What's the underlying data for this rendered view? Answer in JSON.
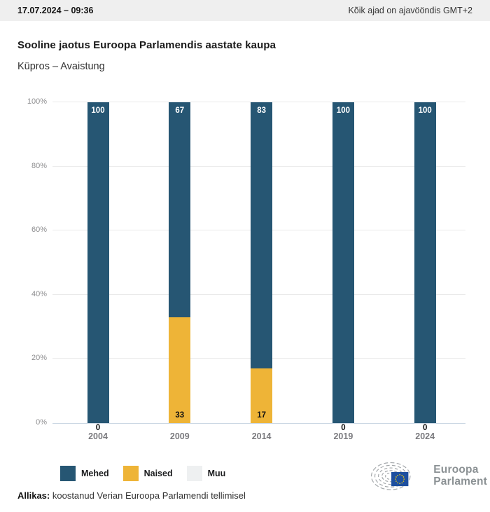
{
  "header": {
    "datetime": "17.07.2024 – 09:36",
    "timezone_note": "Kõik ajad on ajavööndis GMT+2"
  },
  "title": "Sooline jaotus Euroopa Parlamendis aastate kaupa",
  "subtitle": "Küpros – Avaistung",
  "chart_data": {
    "type": "bar",
    "stacked": true,
    "categories": [
      "2004",
      "2009",
      "2014",
      "2019",
      "2024"
    ],
    "series": [
      {
        "name": "Mehed",
        "color": "#265673",
        "values": [
          100,
          67,
          83,
          100,
          100
        ]
      },
      {
        "name": "Naised",
        "color": "#eeb437",
        "values": [
          0,
          33,
          17,
          0,
          0
        ]
      },
      {
        "name": "Muu",
        "color": "#eef0f1",
        "values": [
          0,
          0,
          0,
          0,
          0
        ]
      }
    ],
    "title": "Sooline jaotus Euroopa Parlamendis aastate kaupa",
    "xlabel": "",
    "ylabel": "",
    "ylim": [
      0,
      100
    ],
    "yticks": [
      0,
      20,
      40,
      60,
      80,
      100
    ],
    "ytick_suffix": "%",
    "grid": true,
    "legend_position": "bottom",
    "value_labels": true
  },
  "legend": {
    "items": [
      {
        "label": "Mehed",
        "color": "#265673"
      },
      {
        "label": "Naised",
        "color": "#eeb437"
      },
      {
        "label": "Muu",
        "color": "#eef0f1"
      }
    ]
  },
  "footer": {
    "source_label": "Allikas:",
    "source_text": " koostanud Verian Euroopa Parlamendi tellimisel"
  },
  "logo": {
    "line1": "Euroopa",
    "line2": "Parlament",
    "flag_blue": "#1d4f9f",
    "star_yellow": "#f7d108",
    "swirl_gray": "#a4a8ab"
  }
}
